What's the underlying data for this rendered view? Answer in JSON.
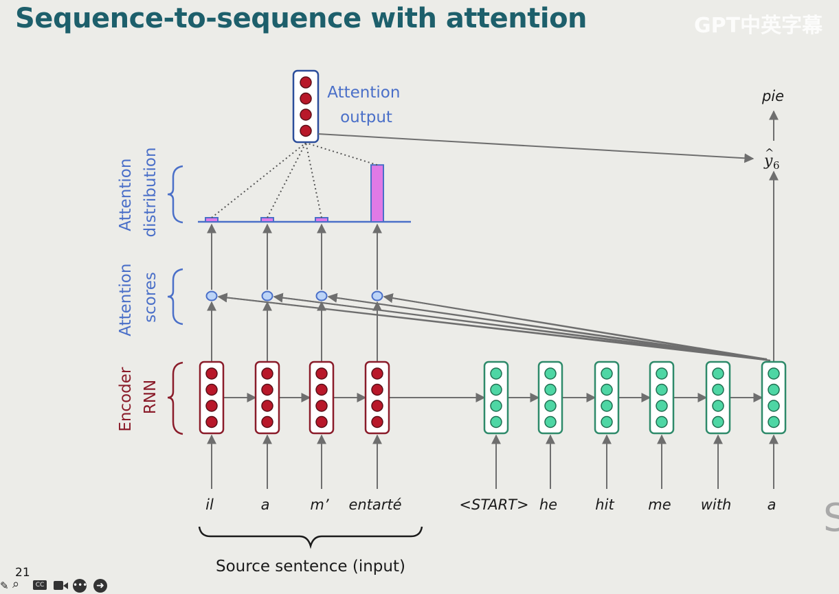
{
  "title": "Sequence-to-sequence with attention",
  "watermark": "GPT中英字幕",
  "edge_letter": "S",
  "labels": {
    "attention_output": [
      "Attention",
      "output"
    ],
    "attention_distribution": [
      "Attention",
      "distribution"
    ],
    "attention_scores": [
      "Attention",
      "scores"
    ],
    "encoder_rnn": [
      "Encoder",
      "RNN"
    ],
    "source_sentence": "Source sentence (input)",
    "output_word": "pie",
    "output_symbol_base": "y",
    "output_symbol_subscript": "6"
  },
  "source_words": [
    "il",
    "a",
    "m’",
    "entarté"
  ],
  "target_words": [
    "<START>",
    "he",
    "hit",
    "me",
    "with",
    "a"
  ],
  "attention_distribution": [
    0.06,
    0.06,
    0.06,
    0.9
  ],
  "slide_number": "21",
  "colors": {
    "title": "#1d5f6b",
    "encoder": "#8a1c2a",
    "encoder_dot": "#b8182a",
    "decoder": "#2e8a6a",
    "decoder_dot": "#4ed6a4",
    "attention_blue": "#4a6fc8",
    "attention_bar": "#e07ae6",
    "arrow": "#6e6e6e"
  },
  "toolbar_icons": [
    "pen-icon",
    "zoom-icon",
    "captions-icon",
    "camera-icon",
    "more-icon",
    "next-icon"
  ]
}
